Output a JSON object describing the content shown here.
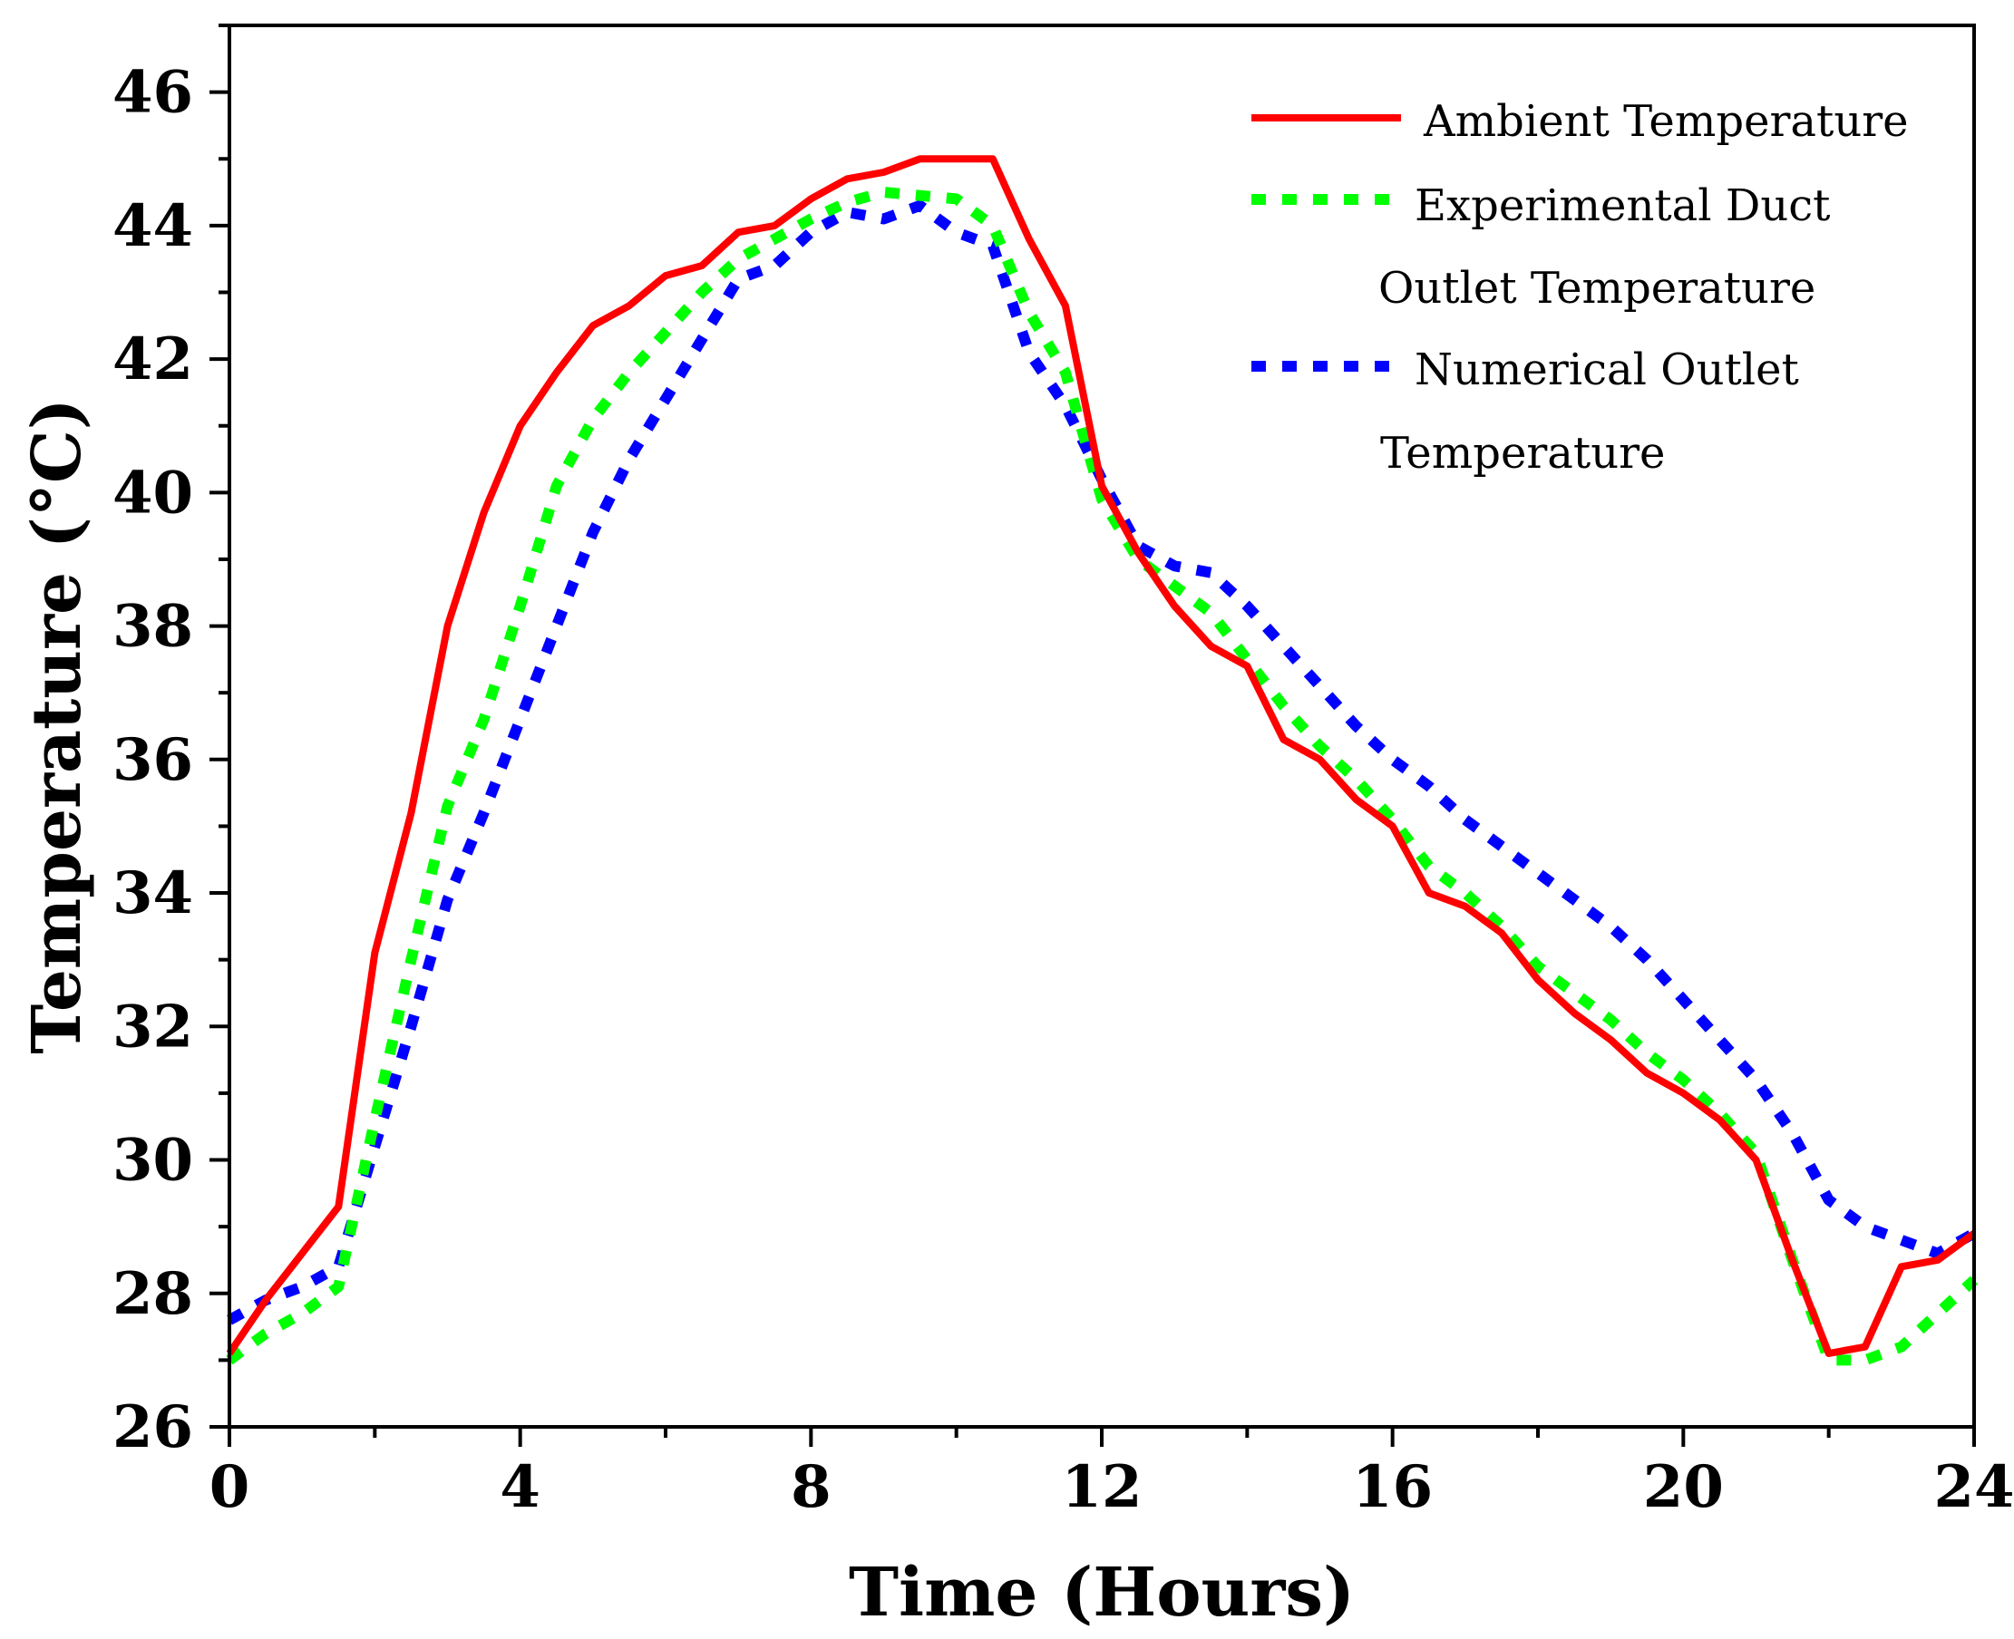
{
  "chart_data": {
    "type": "line",
    "xlabel": "Time (Hours)",
    "ylabel": "Temperature (°C)",
    "xlim": [
      0,
      24
    ],
    "ylim": [
      26,
      47
    ],
    "xticks": [
      0,
      4,
      8,
      12,
      16,
      20,
      24
    ],
    "yticks": [
      26,
      28,
      30,
      32,
      34,
      36,
      38,
      40,
      42,
      44,
      46
    ],
    "x_minor_step": 2,
    "y_minor_step": 1,
    "grid": false,
    "legend_position": "top-right",
    "legend_lines": [
      "Ambient Temperature",
      "Experimental Duct",
      "Outlet Temperature",
      "Numerical Outlet",
      "Temperature"
    ],
    "series": [
      {
        "name": "Ambient Temperature",
        "color": "#ff0000",
        "style": "solid",
        "x": [
          0,
          0.5,
          1,
          1.5,
          2,
          2.5,
          3,
          3.5,
          4,
          4.5,
          5,
          5.5,
          6,
          6.5,
          7,
          7.5,
          8,
          8.5,
          9,
          9.5,
          10,
          10.5,
          11,
          11.5,
          12,
          12.5,
          13,
          13.5,
          14,
          14.5,
          15,
          15.5,
          16,
          16.5,
          17,
          17.5,
          18,
          18.5,
          19,
          19.5,
          20,
          20.5,
          21,
          21.5,
          22,
          22.5,
          23,
          23.5,
          24
        ],
        "y": [
          27.1,
          27.9,
          28.6,
          29.3,
          33.1,
          35.2,
          38.0,
          39.7,
          41.0,
          41.8,
          42.5,
          42.8,
          43.25,
          43.4,
          43.9,
          44.0,
          44.4,
          44.7,
          44.8,
          45.0,
          45.0,
          45.0,
          43.8,
          42.8,
          40.1,
          39.1,
          38.3,
          37.7,
          37.4,
          36.3,
          36.0,
          35.4,
          35.0,
          34.0,
          33.8,
          33.4,
          32.7,
          32.2,
          31.8,
          31.3,
          31.0,
          30.6,
          30.0,
          28.5,
          27.1,
          27.2,
          28.4,
          28.5,
          28.9
        ]
      },
      {
        "name": "Experimental Duct Outlet Temperature",
        "color": "#00ff00",
        "style": "dotted",
        "x": [
          0,
          0.5,
          1,
          1.5,
          2,
          2.5,
          3,
          3.5,
          4,
          4.5,
          5,
          5.5,
          6,
          6.5,
          7,
          7.5,
          8,
          8.5,
          9,
          9.5,
          10,
          10.5,
          11,
          11.5,
          12,
          12.5,
          13,
          13.5,
          14,
          14.5,
          15,
          15.5,
          16,
          16.5,
          17,
          17.5,
          18,
          18.5,
          19,
          19.5,
          20,
          20.5,
          21,
          21.5,
          22,
          22.5,
          23,
          23.5,
          24
        ],
        "y": [
          27.0,
          27.4,
          27.7,
          28.1,
          30.6,
          33.0,
          35.3,
          36.6,
          38.3,
          40.1,
          41.1,
          41.8,
          42.4,
          43.0,
          43.5,
          43.8,
          44.1,
          44.35,
          44.5,
          44.45,
          44.4,
          44.0,
          42.7,
          41.8,
          39.9,
          39.0,
          38.6,
          38.2,
          37.5,
          36.8,
          36.2,
          35.7,
          35.1,
          34.4,
          34.0,
          33.5,
          32.9,
          32.5,
          32.1,
          31.6,
          31.2,
          30.7,
          30.1,
          28.5,
          27.0,
          27.0,
          27.2,
          27.7,
          28.2
        ]
      },
      {
        "name": "Numerical Outlet Temperature",
        "color": "#0000ff",
        "style": "dotted",
        "x": [
          0,
          0.5,
          1,
          1.5,
          2,
          2.5,
          3,
          3.5,
          4,
          4.5,
          5,
          5.5,
          6,
          6.5,
          7,
          7.5,
          8,
          8.5,
          9,
          9.5,
          10,
          10.5,
          11,
          11.5,
          12,
          12.5,
          13,
          13.5,
          14,
          14.5,
          15,
          15.5,
          16,
          16.5,
          17,
          17.5,
          18,
          18.5,
          19,
          19.5,
          20,
          20.5,
          21,
          21.5,
          22,
          22.5,
          23,
          23.5,
          24
        ],
        "y": [
          27.6,
          27.9,
          28.1,
          28.4,
          30.2,
          32.0,
          33.9,
          35.2,
          36.6,
          38.0,
          39.4,
          40.5,
          41.4,
          42.3,
          43.2,
          43.4,
          43.9,
          44.2,
          44.1,
          44.3,
          43.9,
          43.7,
          42.1,
          41.3,
          40.2,
          39.2,
          38.9,
          38.8,
          38.3,
          37.7,
          37.1,
          36.5,
          36.0,
          35.6,
          35.1,
          34.7,
          34.3,
          33.9,
          33.5,
          33.0,
          32.4,
          31.8,
          31.2,
          30.4,
          29.4,
          29.0,
          28.8,
          28.6,
          28.9
        ]
      }
    ]
  }
}
